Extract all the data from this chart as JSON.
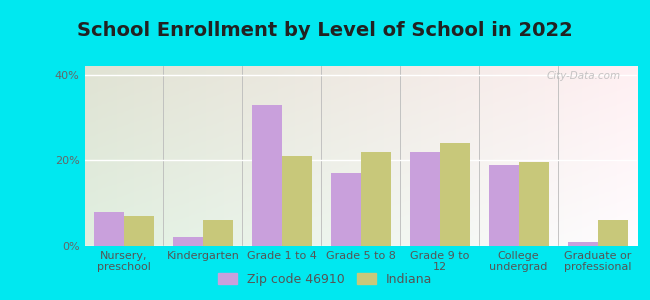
{
  "title": "School Enrollment by Level of School in 2022",
  "categories": [
    "Nursery,\npreschool",
    "Kindergarten",
    "Grade 1 to 4",
    "Grade 5 to 8",
    "Grade 9 to\n12",
    "College\nundergrad",
    "Graduate or\nprofessional"
  ],
  "zip_values": [
    8.0,
    2.0,
    33.0,
    17.0,
    22.0,
    19.0,
    1.0
  ],
  "indiana_values": [
    7.0,
    6.0,
    21.0,
    22.0,
    24.0,
    19.5,
    6.0
  ],
  "zip_color": "#c9a0dc",
  "indiana_color": "#c8c87a",
  "background_outer": "#00e8f0",
  "background_inner_topleft": "#e8f5e0",
  "background_inner_bottomleft": "#c8edd8",
  "background_inner_topright": "#f8f8f8",
  "ylim": [
    0,
    42
  ],
  "yticks": [
    0,
    20,
    40
  ],
  "ytick_labels": [
    "0%",
    "20%",
    "40%"
  ],
  "legend_zip_label": "Zip code 46910",
  "legend_indiana_label": "Indiana",
  "title_fontsize": 14,
  "tick_fontsize": 8,
  "legend_fontsize": 9,
  "bar_width": 0.38,
  "watermark": "City-Data.com"
}
